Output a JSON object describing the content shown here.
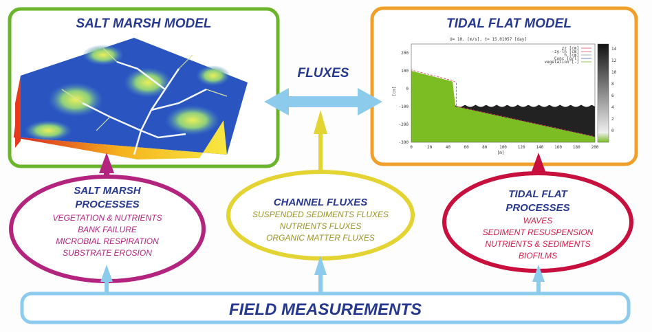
{
  "salt_marsh_model": {
    "title": "SALT MARSH MODEL",
    "border_color": "#6bb52c"
  },
  "tidal_flat_model": {
    "title": "TIDAL FLAT MODEL",
    "border_color": "#f0a02a",
    "plot": {
      "header": "U= 10.  [m/s], t= 15.01057 [day]",
      "ylabel": "[cm]",
      "xlabel": "[m]",
      "x_ticks": [
        "0",
        "20",
        "40",
        "60",
        "80",
        "100",
        "120",
        "140",
        "160",
        "180",
        "200"
      ],
      "y_ticks": [
        "200",
        "100",
        "0",
        "-100",
        "-200",
        "-300"
      ],
      "legend": [
        "zz [cm]",
        "-zy-ln [cm]",
        "h [cm]",
        "Conc [g/l]",
        "vegetation [-]"
      ],
      "colorbar_ticks": [
        "14",
        "12",
        "10",
        "8",
        "6",
        "4",
        "2",
        "0"
      ]
    }
  },
  "fluxes": {
    "label": "FLUXES",
    "arrow_color": "#8dcbec"
  },
  "salt_marsh_processes": {
    "title_line1": "SALT MARSH",
    "title_line2": "PROCESSES",
    "items": [
      "VEGETATION & NUTRIENTS",
      "BANK FAILURE",
      "MICROBIAL RESPIRATION",
      "SUBSTRATE EROSION"
    ],
    "color": "#b3247f"
  },
  "channel_fluxes": {
    "title": "CHANNEL FLUXES",
    "items": [
      "SUSPENDED SEDIMENTS FLUXES",
      "NUTRIENTS FLUXES",
      "ORGANIC MATTER FLUXES"
    ],
    "color": "#e3d333"
  },
  "tidal_flat_processes": {
    "title_line1": "TIDAL FLAT",
    "title_line2": "PROCESSES",
    "items": [
      "WAVES",
      "SEDIMENT RESUSPENSION",
      "NUTRIENTS & SEDIMENTS",
      "BIOFILMS"
    ],
    "color": "#c8103f"
  },
  "field_measurements": {
    "label": "FIELD MEASUREMENTS"
  }
}
